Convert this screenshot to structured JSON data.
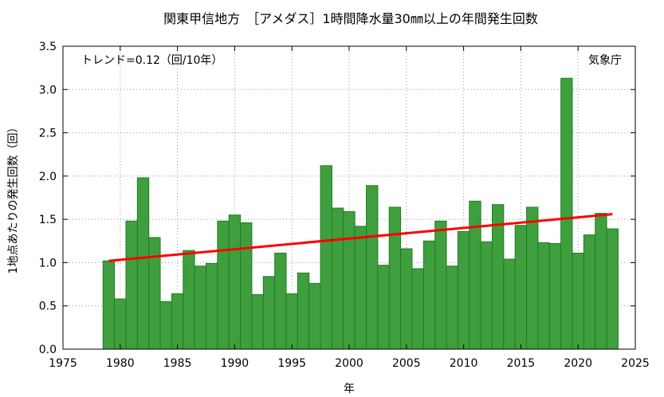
{
  "chart_data": {
    "type": "bar",
    "title": "関東甲信地方　［アメダス］1時間降水量30㎜以上の年間発生回数",
    "xlabel": "年",
    "ylabel": "1地点あたりの発生回数（回）",
    "trend_label": "トレンド=0.12（回/10年）",
    "source_label": "気象庁",
    "xlim": [
      1975,
      2025
    ],
    "ylim": [
      0,
      3.5
    ],
    "x_ticks": [
      1975,
      1980,
      1985,
      1990,
      1995,
      2000,
      2005,
      2010,
      2015,
      2020,
      2025
    ],
    "y_ticks": [
      "0.0",
      "0.5",
      "1.0",
      "1.5",
      "2.0",
      "2.5",
      "3.0",
      "3.5"
    ],
    "grid": true,
    "bar_color": "#3f9f3f",
    "bar_edge_color": "#1f7f1f",
    "trend_color": "#ff0000",
    "series": [
      {
        "x": [
          1979,
          1980,
          1981,
          1982,
          1983,
          1984,
          1985,
          1986,
          1987,
          1988,
          1989,
          1990,
          1991,
          1992,
          1993,
          1994,
          1995,
          1996,
          1997,
          1998,
          1999,
          2000,
          2001,
          2002,
          2003,
          2004,
          2005,
          2006,
          2007,
          2008,
          2009,
          2010,
          2011,
          2012,
          2013,
          2014,
          2015,
          2016,
          2017,
          2018,
          2019,
          2020,
          2021,
          2022,
          2023
        ],
        "values": [
          1.02,
          0.58,
          1.48,
          1.98,
          1.29,
          0.55,
          0.64,
          1.14,
          0.96,
          0.99,
          1.48,
          1.55,
          1.46,
          0.63,
          0.84,
          1.11,
          0.64,
          0.88,
          0.76,
          2.12,
          1.63,
          1.59,
          1.42,
          1.89,
          0.97,
          1.64,
          1.16,
          0.93,
          1.25,
          1.48,
          0.96,
          1.36,
          1.71,
          1.24,
          1.67,
          1.04,
          1.43,
          1.64,
          1.23,
          1.22,
          3.13,
          1.11,
          1.32,
          1.57,
          1.39
        ]
      }
    ],
    "trend": {
      "x": [
        1979,
        2023
      ],
      "y": [
        1.02,
        1.56
      ]
    }
  }
}
